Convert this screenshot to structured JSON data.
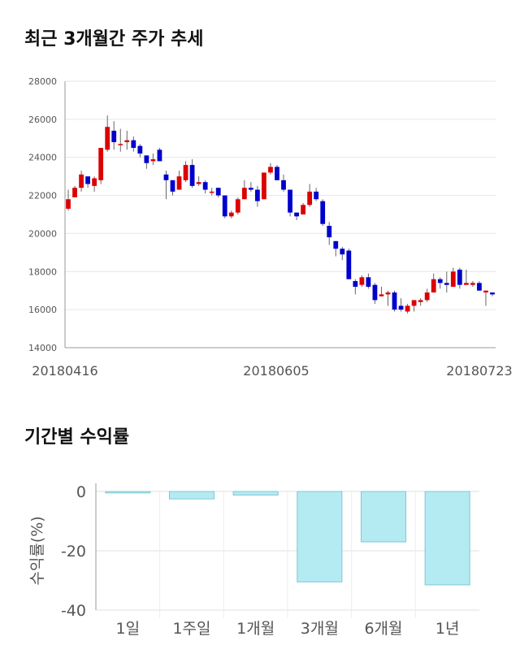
{
  "section1": {
    "title": "최근 3개월간 주가 추세"
  },
  "section2": {
    "title": "기간별 수익률"
  },
  "chart_data": [
    {
      "type": "candlestick",
      "title": "최근 3개월간 주가 추세",
      "ylim": [
        14000,
        28000
      ],
      "y_ticks": [
        "28000",
        "26000",
        "24000",
        "22000",
        "20000",
        "18000",
        "16000",
        "14000"
      ],
      "x_tick_labels": [
        "20180416",
        "20180605",
        "20180723"
      ],
      "grid": true,
      "colors": {
        "up": "#dd0000",
        "down": "#0000cc"
      },
      "ohlc": [
        [
          21300,
          22300,
          21200,
          21800
        ],
        [
          21900,
          22500,
          21900,
          22400
        ],
        [
          22400,
          23300,
          22200,
          23100
        ],
        [
          23000,
          23000,
          22400,
          22600
        ],
        [
          22500,
          23000,
          22200,
          22900
        ],
        [
          22800,
          24500,
          22600,
          24500
        ],
        [
          24400,
          26200,
          24300,
          25600
        ],
        [
          25400,
          25900,
          24400,
          24800
        ],
        [
          24700,
          25500,
          24300,
          24700
        ],
        [
          24800,
          25400,
          24400,
          24900
        ],
        [
          24900,
          25100,
          24300,
          24500
        ],
        [
          24600,
          24700,
          24000,
          24200
        ],
        [
          24100,
          24100,
          23400,
          23700
        ],
        [
          23800,
          24200,
          23600,
          23900
        ],
        [
          24400,
          24500,
          23800,
          23800
        ],
        [
          23100,
          23300,
          21800,
          22800
        ],
        [
          22800,
          22800,
          22000,
          22200
        ],
        [
          22300,
          23300,
          22300,
          23000
        ],
        [
          22800,
          23800,
          22700,
          23600
        ],
        [
          23600,
          23900,
          22400,
          22500
        ],
        [
          22600,
          23000,
          22500,
          22700
        ],
        [
          22700,
          22800,
          22100,
          22300
        ],
        [
          22200,
          22400,
          22000,
          22200
        ],
        [
          22400,
          22400,
          21900,
          22000
        ],
        [
          22000,
          22000,
          20800,
          20900
        ],
        [
          20900,
          21200,
          20800,
          21100
        ],
        [
          21100,
          21900,
          21000,
          21800
        ],
        [
          21800,
          22800,
          21800,
          22400
        ],
        [
          22400,
          22700,
          22200,
          22300
        ],
        [
          22300,
          22500,
          21400,
          21700
        ],
        [
          21800,
          23200,
          21800,
          23200
        ],
        [
          23200,
          23700,
          23100,
          23500
        ],
        [
          23500,
          23600,
          22800,
          22800
        ],
        [
          22800,
          23100,
          22200,
          22300
        ],
        [
          22300,
          22300,
          20900,
          21100
        ],
        [
          21100,
          21100,
          20700,
          20900
        ],
        [
          21000,
          21600,
          21000,
          21500
        ],
        [
          21500,
          22600,
          21400,
          22200
        ],
        [
          22200,
          22400,
          21700,
          21800
        ],
        [
          21700,
          21800,
          20400,
          20500
        ],
        [
          20400,
          20600,
          19400,
          19800
        ],
        [
          19600,
          19600,
          18800,
          19200
        ],
        [
          19200,
          19300,
          18600,
          18900
        ],
        [
          19100,
          19200,
          17600,
          17600
        ],
        [
          17500,
          17600,
          16800,
          17200
        ],
        [
          17300,
          17800,
          17200,
          17700
        ],
        [
          17700,
          17900,
          17100,
          17200
        ],
        [
          17300,
          17400,
          16300,
          16500
        ],
        [
          16700,
          17200,
          16700,
          16800
        ],
        [
          16800,
          17000,
          16200,
          16900
        ],
        [
          16900,
          17000,
          15900,
          16000
        ],
        [
          16200,
          16600,
          15900,
          16000
        ],
        [
          15900,
          16300,
          15800,
          16200
        ],
        [
          16200,
          16500,
          15900,
          16500
        ],
        [
          16400,
          16600,
          16200,
          16500
        ],
        [
          16500,
          17100,
          16400,
          16900
        ],
        [
          16900,
          17900,
          16900,
          17600
        ],
        [
          17600,
          17700,
          17100,
          17400
        ],
        [
          17400,
          18000,
          16900,
          17300
        ],
        [
          17200,
          18200,
          17200,
          18000
        ],
        [
          18100,
          18200,
          17100,
          17300
        ],
        [
          17300,
          18100,
          17300,
          17400
        ],
        [
          17300,
          17500,
          17200,
          17400
        ],
        [
          17400,
          17500,
          17000,
          17000
        ],
        [
          16900,
          17000,
          16200,
          17000
        ],
        [
          16900,
          16900,
          16700,
          16800
        ]
      ]
    },
    {
      "type": "bar",
      "categories": [
        "1일",
        "1주일",
        "1개월",
        "3개월",
        "6개월",
        "1년"
      ],
      "values": [
        -0.5,
        -2.5,
        -1.2,
        -30.5,
        -17,
        -31.5
      ],
      "ylabel": "수익률(%)",
      "ylim": [
        -40,
        0
      ],
      "y_ticks": [
        "0",
        "-20",
        "-40"
      ],
      "grid": true,
      "colors": {
        "bar": "#b4eaf2",
        "bar_stroke": "#7fc8d4"
      }
    }
  ]
}
